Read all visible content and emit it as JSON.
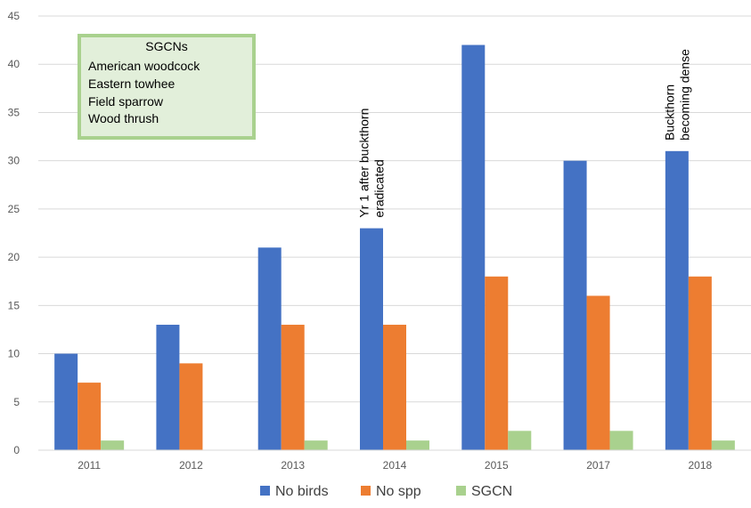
{
  "chart_data": {
    "type": "bar",
    "categories": [
      "2011",
      "2012",
      "2013",
      "2014",
      "2015",
      "2017",
      "2018"
    ],
    "series": [
      {
        "name": "No birds",
        "color": "#4472C4",
        "values": [
          10,
          13,
          21,
          23,
          42,
          30,
          31
        ]
      },
      {
        "name": "No spp",
        "color": "#ED7D31",
        "values": [
          7,
          9,
          13,
          13,
          18,
          16,
          18
        ]
      },
      {
        "name": "SGCN",
        "color": "#A9D18E",
        "values": [
          1,
          0,
          1,
          1,
          2,
          2,
          1
        ]
      }
    ],
    "ylim": [
      0,
      45
    ],
    "yticks": [
      0,
      5,
      10,
      15,
      20,
      25,
      30,
      35,
      40,
      45
    ],
    "grid": true,
    "legend_position": "bottom",
    "annotations": [
      {
        "category": "2014",
        "lines": [
          "Yr 1 after buckthorn",
          "eradicated"
        ]
      },
      {
        "category": "2018",
        "lines": [
          "Buckthorn",
          "becoming dense"
        ]
      }
    ],
    "textbox": {
      "title": "SGCNs",
      "items": [
        "American woodcock",
        "Eastern towhee",
        "Field sparrow",
        "Wood thrush"
      ],
      "border_color": "#A9D18E",
      "fill_color": "#E2EFDA"
    }
  }
}
